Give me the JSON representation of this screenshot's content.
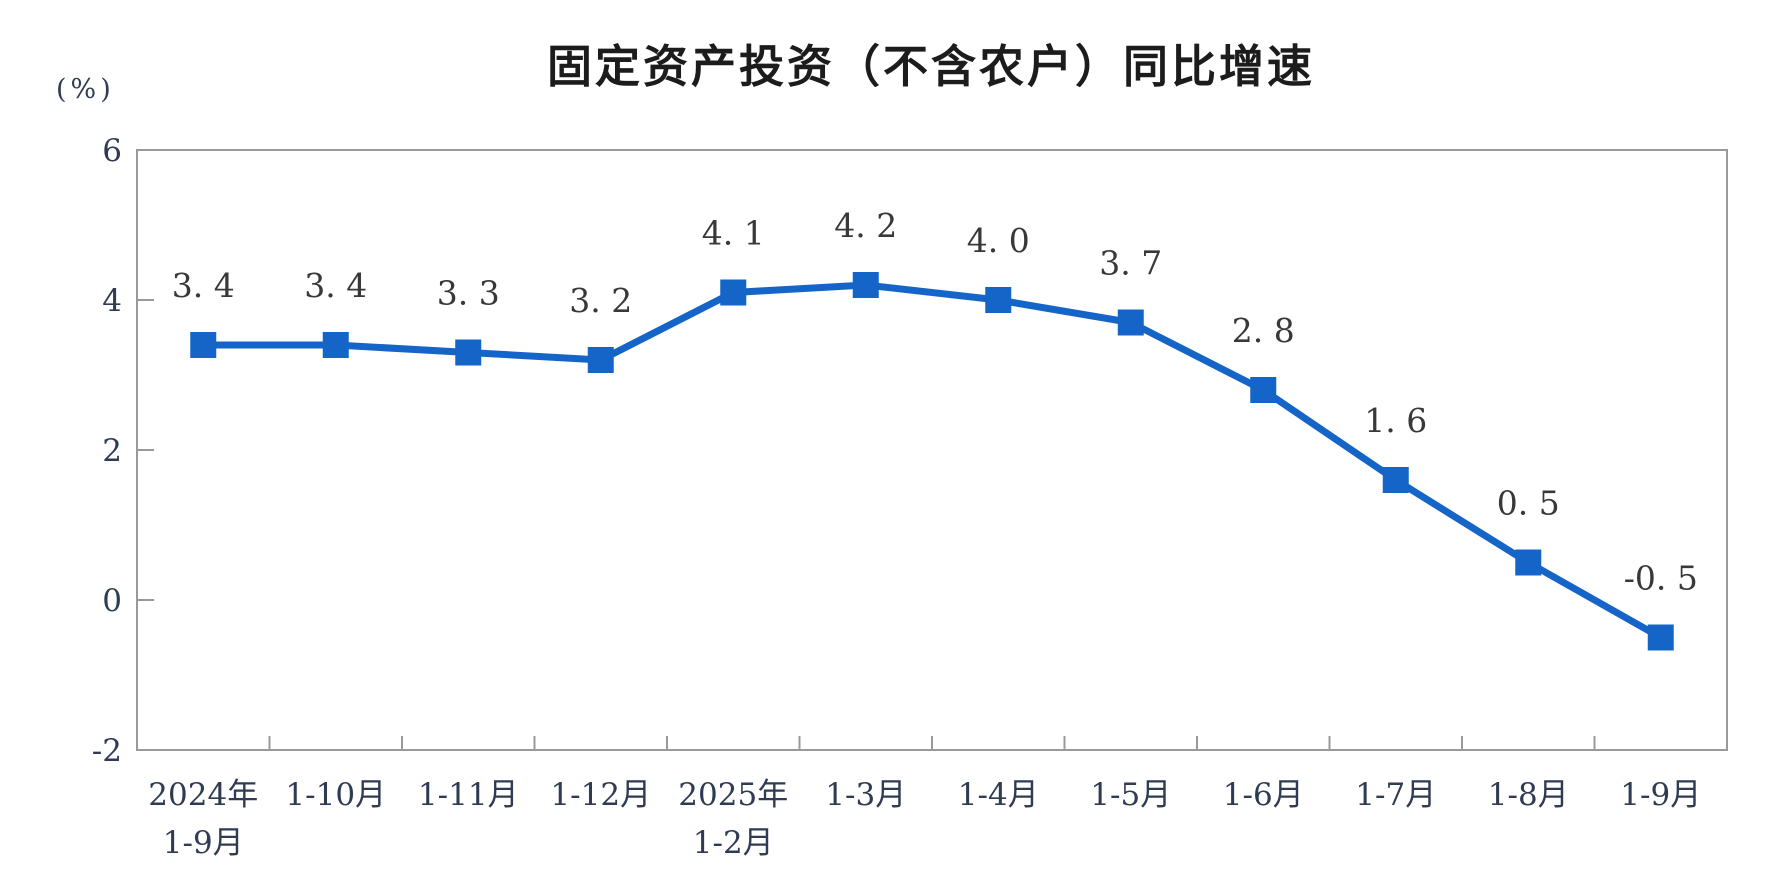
{
  "chart": {
    "title": "固定资产投资（不含农户）同比增速",
    "unit_label": "(%)"
  },
  "chart_data": {
    "type": "line",
    "title": "固定资产投资（不含农户）同比增速",
    "ylabel": "(%)",
    "xlabel": "",
    "categories": [
      [
        "2024年",
        "1-9月"
      ],
      [
        "1-10月"
      ],
      [
        "1-11月"
      ],
      [
        "1-12月"
      ],
      [
        "2025年",
        "1-2月"
      ],
      [
        "1-3月"
      ],
      [
        "1-4月"
      ],
      [
        "1-5月"
      ],
      [
        "1-6月"
      ],
      [
        "1-7月"
      ],
      [
        "1-8月"
      ],
      [
        "1-9月"
      ]
    ],
    "series": [
      {
        "name": "固定资产投资（不含农户）同比增速",
        "values": [
          3.4,
          3.4,
          3.3,
          3.2,
          4.1,
          4.2,
          4.0,
          3.7,
          2.8,
          1.6,
          0.5,
          -0.5
        ]
      }
    ],
    "point_labels": [
      "3. 4",
      "3. 4",
      "3. 3",
      "3. 2",
      "4. 1",
      "4. 2",
      "4. 0",
      "3. 7",
      "2. 8",
      "1. 6",
      "0. 5",
      "-0. 5"
    ],
    "ylim": [
      -2,
      6
    ],
    "yticks": [
      6,
      4,
      2,
      0,
      -2
    ],
    "ytick_labels": [
      "6",
      "4",
      "2",
      "0",
      "-2"
    ],
    "grid": false,
    "legend_position": "none",
    "marker": "square",
    "colors": {
      "line": "#1565c8",
      "axis": "#999999",
      "axis_text": "#2f3b52",
      "point_label_text": "#383838",
      "title_text": "#1c1c1c"
    }
  }
}
